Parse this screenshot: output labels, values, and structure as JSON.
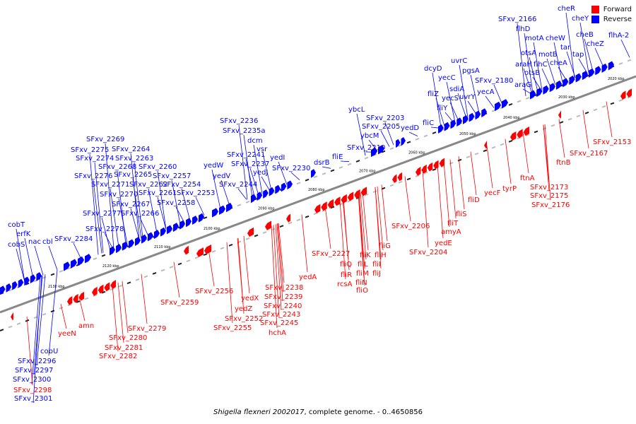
{
  "legend": {
    "forward_label": "Forward",
    "reverse_label": "Reverse",
    "forward_color": "#ff0000",
    "reverse_color": "#0000ff"
  },
  "caption": {
    "organism": "Shigella flexneri 2002017",
    "suffix": ", complete genome. - 0..4650856"
  },
  "map": {
    "backbone_color": "#888888",
    "ticks": [
      "2020 kbp",
      "2030 kbp",
      "2040 kbp",
      "2050 kbp",
      "2060 kbp",
      "2070 kbp",
      "2080 kbp",
      "2090 kbp",
      "2100 kbp",
      "2110 kbp",
      "2120 kbp",
      "2130 kbp"
    ],
    "reverse_genes": [
      "cheR",
      "cheY",
      "flhA-2",
      "cheB",
      "cheZ",
      "tap",
      "tar",
      "cheA",
      "motB",
      "cheW",
      "SFxv_2166",
      "flhD",
      "motA",
      "otsA",
      "araH",
      "flhC",
      "otsB",
      "araG",
      "SFxv_2180",
      "uvrC",
      "pgsA",
      "yecC",
      "sdiA",
      "yecA",
      "dcyD",
      "fliZ",
      "yecS",
      "uvrY",
      "fliY",
      "fliC",
      "yedD",
      "ybcL",
      "SFxv_2203",
      "SFxv_2205",
      "ybcM",
      "SFxv_2210",
      "fliE",
      "dsrB",
      "SFxv_2236",
      "SFxv_2235a",
      "dcm",
      "vsr",
      "SFxv_2241",
      "SFxv_2237",
      "yedI",
      "yedJ",
      "SFxv_2230",
      "yedW",
      "yedV",
      "SFxv_2244",
      "SFxv_2269",
      "SFxv_2275",
      "SFxv_2264",
      "SFxv_2274",
      "SFxv_2263",
      "SFxv_2268",
      "SFxv_2260",
      "SFxv_2276",
      "SFxv_2265",
      "SFxv_2257",
      "SFxv_2271",
      "SFxv_2262",
      "SFxv_2254",
      "SFxv_2270",
      "SFxv_2261",
      "SFxv_2253",
      "SFxv_2267",
      "SFxv_2258",
      "SFxv_2277",
      "SFxv_2266",
      "SFxv_2278",
      "SFxv_2284",
      "cobT",
      "erfK",
      "cobS",
      "nac",
      "cbl",
      "cobU",
      "SFxv_2296",
      "SFxv_2297",
      "SFxv_2300",
      "SFxv_2301"
    ],
    "forward_genes": [
      "SFxv_2153",
      "SFxv_2167",
      "ftnB",
      "ftnA",
      "SFxv_2173",
      "SFxv_2175",
      "SFxv_2176",
      "tyrP",
      "yecF",
      "fliD",
      "fliS",
      "fliT",
      "amyA",
      "yedE",
      "SFxv_2206",
      "SFxv_2204",
      "fliG",
      "fliH",
      "fliK",
      "fliI",
      "fliL",
      "fliJ",
      "fliM",
      "fliN",
      "fliO",
      "SFxv_2227",
      "fliQ",
      "fliR",
      "rcsA",
      "yedA",
      "SFxv_2238",
      "SFxv_2239",
      "SFxv_2240",
      "SFxv_2243",
      "SFxv_2245",
      "hchA",
      "yedX",
      "yedZ",
      "SFxv_2252",
      "SFxv_2255",
      "SFxv_2256",
      "SFxv_2259",
      "SFxv_2279",
      "SFxv_2280",
      "SFxv_2281",
      "SFxv_2282",
      "amn",
      "yeeN",
      "SFxv_2298"
    ]
  }
}
